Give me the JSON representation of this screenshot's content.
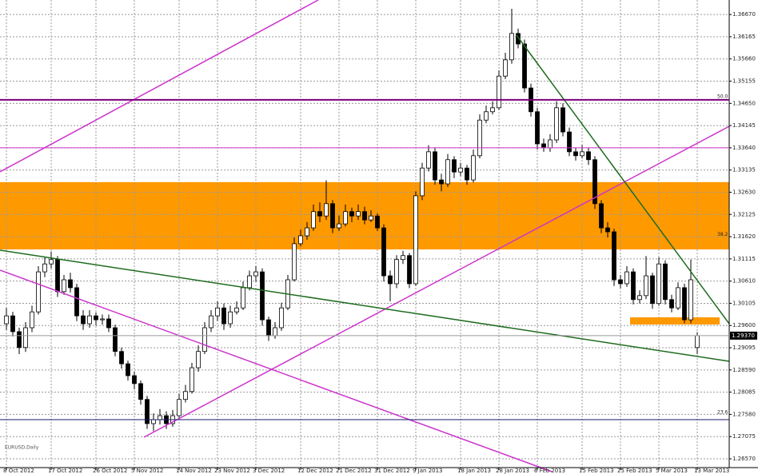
{
  "chart_data": {
    "type": "candlestick",
    "caption": "EURUSD,Daily",
    "categories": [
      "8 Oct 2012",
      null,
      null,
      null,
      null,
      null,
      null,
      "17 Oct 2012",
      null,
      null,
      null,
      null,
      null,
      null,
      "26 Oct 2012",
      null,
      null,
      null,
      null,
      null,
      "5 Nov 2012",
      null,
      null,
      null,
      null,
      null,
      null,
      "14 Nov 2012",
      null,
      null,
      null,
      null,
      null,
      "23 Nov 2012",
      null,
      null,
      null,
      null,
      null,
      "3 Dec 2012",
      null,
      null,
      null,
      null,
      null,
      null,
      "12 Dec 2012",
      null,
      null,
      null,
      null,
      null,
      "21 Dec 2012",
      null,
      null,
      null,
      null,
      null,
      "31 Dec 2012",
      null,
      null,
      null,
      null,
      null,
      "9 Jan 2013",
      null,
      null,
      null,
      null,
      null,
      null,
      "18 Jan 2013",
      null,
      null,
      null,
      null,
      null,
      "28 Jan 2013",
      null,
      null,
      null,
      null,
      null,
      "6 Feb 2013",
      null,
      null,
      null,
      null,
      null,
      null,
      "15 Feb 2013",
      null,
      null,
      null,
      null,
      null,
      "25 Feb 2013",
      null,
      null,
      null,
      null,
      null,
      "5 Mar 2013",
      null,
      null,
      null,
      null,
      null,
      "13 Mar 2013"
    ],
    "open": [
      1.2964,
      1.2982,
      1.2946,
      1.291,
      1.2955,
      1.2991,
      1.3082,
      1.31,
      1.311,
      1.3037,
      1.3064,
      1.3046,
      1.2982,
      1.2964,
      1.2982,
      1.2973,
      1.2975,
      1.2955,
      1.2901,
      1.2873,
      1.2846,
      1.2828,
      1.2792,
      1.2737,
      1.2746,
      1.2755,
      1.2737,
      1.2755,
      1.2792,
      1.281,
      1.2864,
      1.2901,
      1.2955,
      1.2982,
      1.3,
      1.2964,
      1.2991,
      1.3,
      1.3046,
      1.3073,
      1.3082,
      1.2973,
      1.2937,
      1.2955,
      1.3,
      1.3064,
      1.3146,
      1.3164,
      1.3182,
      1.3219,
      1.3209,
      1.3237,
      1.3182,
      1.3191,
      1.3219,
      1.3209,
      1.3219,
      1.32,
      1.3209,
      1.3182,
      1.3073,
      1.3055,
      1.311,
      1.3119,
      1.3055,
      1.3255,
      1.3318,
      1.3355,
      1.3291,
      1.3282,
      1.3337,
      1.3309,
      1.3318,
      1.3291,
      1.3346,
      1.3427,
      1.3446,
      1.3455,
      1.3527,
      1.3564,
      1.3624,
      1.36,
      1.35,
      1.3446,
      1.3373,
      1.3364,
      1.3382,
      1.3455,
      1.34,
      1.3355,
      1.3346,
      1.3355,
      1.3337,
      1.3237,
      1.3182,
      1.3173,
      1.3064,
      1.3055,
      1.3082,
      1.3019,
      1.3028,
      1.3073,
      1.301,
      1.31,
      1.3019,
      1.3,
      1.3046,
      1.2973,
      1.291
    ],
    "high": [
      1.3,
      1.2991,
      1.2955,
      1.2968,
      1.3005,
      1.3095,
      1.3115,
      1.3128,
      1.3118,
      1.3075,
      1.308,
      1.3055,
      1.2995,
      1.2995,
      1.299,
      1.2985,
      1.2985,
      1.2962,
      1.291,
      1.288,
      1.2855,
      1.2835,
      1.28,
      1.276,
      1.277,
      1.2765,
      1.2768,
      1.2805,
      1.2825,
      1.2875,
      1.2915,
      1.2968,
      1.2995,
      1.3015,
      1.301,
      1.3005,
      1.3015,
      1.306,
      1.3085,
      1.3095,
      1.309,
      1.298,
      1.2968,
      1.3012,
      1.3075,
      1.316,
      1.3178,
      1.3195,
      1.3235,
      1.324,
      1.329,
      1.3245,
      1.321,
      1.3235,
      1.3228,
      1.3235,
      1.323,
      1.3222,
      1.3215,
      1.319,
      1.3085,
      1.312,
      1.313,
      1.3125,
      1.3265,
      1.333,
      1.337,
      1.3365,
      1.3305,
      1.335,
      1.3345,
      1.333,
      1.3325,
      1.336,
      1.344,
      1.346,
      1.347,
      1.354,
      1.358,
      1.368,
      1.3635,
      1.361,
      1.351,
      1.3455,
      1.3385,
      1.3395,
      1.347,
      1.3465,
      1.341,
      1.3365,
      1.337,
      1.3365,
      1.3345,
      1.3245,
      1.3195,
      1.318,
      1.3075,
      1.3095,
      1.309,
      1.304,
      1.3118,
      1.308,
      1.3115,
      1.3108,
      1.303,
      1.3058,
      1.3055,
      1.311,
      1.2945
    ],
    "low": [
      1.295,
      1.2935,
      1.2895,
      1.29,
      1.2945,
      1.2985,
      1.307,
      1.309,
      1.3025,
      1.303,
      1.3035,
      1.297,
      1.295,
      1.2955,
      1.296,
      1.2962,
      1.2945,
      1.289,
      1.2862,
      1.2835,
      1.2815,
      1.278,
      1.2725,
      1.272,
      1.2735,
      1.2725,
      1.273,
      1.275,
      1.2785,
      1.2805,
      1.2855,
      1.2895,
      1.2945,
      1.297,
      1.295,
      1.2955,
      1.2985,
      1.2995,
      1.304,
      1.306,
      1.296,
      1.2925,
      1.293,
      1.2948,
      1.2995,
      1.306,
      1.314,
      1.3155,
      1.3175,
      1.3195,
      1.32,
      1.317,
      1.3175,
      1.3185,
      1.3195,
      1.32,
      1.319,
      1.3195,
      1.3175,
      1.306,
      1.3015,
      1.3045,
      1.31,
      1.3045,
      1.305,
      1.3245,
      1.331,
      1.328,
      1.3265,
      1.3275,
      1.3295,
      1.33,
      1.328,
      1.3285,
      1.334,
      1.342,
      1.344,
      1.345,
      1.352,
      1.3555,
      1.359,
      1.349,
      1.3435,
      1.336,
      1.3355,
      1.3355,
      1.3375,
      1.339,
      1.3345,
      1.3335,
      1.334,
      1.3325,
      1.3225,
      1.317,
      1.316,
      1.305,
      1.3045,
      1.3048,
      1.3008,
      1.301,
      1.302,
      1.2998,
      1.3005,
      1.3008,
      1.299,
      1.2995,
      1.2965,
      1.2965,
      1.2895
    ],
    "close": [
      1.2982,
      1.2946,
      1.291,
      1.2955,
      1.2991,
      1.3082,
      1.31,
      1.311,
      1.3037,
      1.3064,
      1.3046,
      1.2982,
      1.2964,
      1.2982,
      1.2973,
      1.2975,
      1.2955,
      1.2901,
      1.2873,
      1.2846,
      1.2828,
      1.2792,
      1.2737,
      1.2746,
      1.2755,
      1.2737,
      1.2755,
      1.2792,
      1.281,
      1.2864,
      1.2901,
      1.2955,
      1.2982,
      1.3,
      1.2964,
      1.2991,
      1.3,
      1.3046,
      1.3073,
      1.3082,
      1.2973,
      1.2937,
      1.2955,
      1.3,
      1.3064,
      1.3146,
      1.3164,
      1.3182,
      1.3219,
      1.3209,
      1.3237,
      1.3182,
      1.3191,
      1.3219,
      1.3209,
      1.3219,
      1.32,
      1.3209,
      1.3182,
      1.3073,
      1.3055,
      1.311,
      1.3119,
      1.3055,
      1.3255,
      1.3318,
      1.3355,
      1.3291,
      1.3282,
      1.3337,
      1.3309,
      1.3318,
      1.3291,
      1.3346,
      1.3427,
      1.3446,
      1.3455,
      1.3527,
      1.3564,
      1.3624,
      1.36,
      1.35,
      1.3446,
      1.3373,
      1.3364,
      1.3382,
      1.3455,
      1.34,
      1.3355,
      1.3346,
      1.3355,
      1.3337,
      1.3237,
      1.3182,
      1.3173,
      1.3064,
      1.3055,
      1.3082,
      1.3019,
      1.3028,
      1.3073,
      1.301,
      1.31,
      1.3019,
      1.3,
      1.3046,
      1.2973,
      1.3064,
      1.2937
    ],
    "up_color": "#ffffff",
    "down_color": "#000000",
    "ylim": [
      1.2637,
      1.37
    ],
    "yticks": [
      {
        "value": 1.2657,
        "label": "1.26570"
      },
      {
        "value": 1.27075,
        "label": "1.27075"
      },
      {
        "value": 1.2758,
        "label": "1.27580"
      },
      {
        "value": 1.28085,
        "label": "1.28085"
      },
      {
        "value": 1.2859,
        "label": "1.28590"
      },
      {
        "value": 1.29095,
        "label": "1.29095"
      },
      {
        "value": 1.296,
        "label": "1.29600"
      },
      {
        "value": 1.30105,
        "label": "1.30105"
      },
      {
        "value": 1.3061,
        "label": "1.30610"
      },
      {
        "value": 1.31115,
        "label": "1.31115"
      },
      {
        "value": 1.3162,
        "label": "1.31620"
      },
      {
        "value": 1.32125,
        "label": "1.32125"
      },
      {
        "value": 1.3263,
        "label": "1.32630"
      },
      {
        "value": 1.33135,
        "label": "1.33135"
      },
      {
        "value": 1.3364,
        "label": "1.33640"
      },
      {
        "value": 1.34145,
        "label": "1.34145"
      },
      {
        "value": 1.3465,
        "label": "1.34650"
      },
      {
        "value": 1.35155,
        "label": "1.35155"
      },
      {
        "value": 1.3566,
        "label": "1.35660"
      },
      {
        "value": 1.36165,
        "label": "1.36165"
      },
      {
        "value": 1.3667,
        "label": "1.36670"
      }
    ],
    "grid": true,
    "zone": {
      "from": 1.3133,
      "to": 1.3286,
      "color": "#ff9900"
    },
    "levels": [
      {
        "value": 1.3473,
        "color": "#7a007a",
        "width": 2
      },
      {
        "value": 1.3364,
        "color": "#cc33cc",
        "width": 1
      },
      {
        "value": 1.2746,
        "color": "#1a1a6e",
        "width": 1
      },
      {
        "value": 1.2937,
        "color": "#999999",
        "width": 1
      }
    ],
    "fib_labels": [
      {
        "value": 1.3473,
        "label": "50.0"
      },
      {
        "value": 1.3159,
        "label": "38.2"
      },
      {
        "value": 1.2755,
        "label": "23.6"
      }
    ],
    "last_price": {
      "value": 1.2937,
      "label": "1.29370"
    }
  }
}
